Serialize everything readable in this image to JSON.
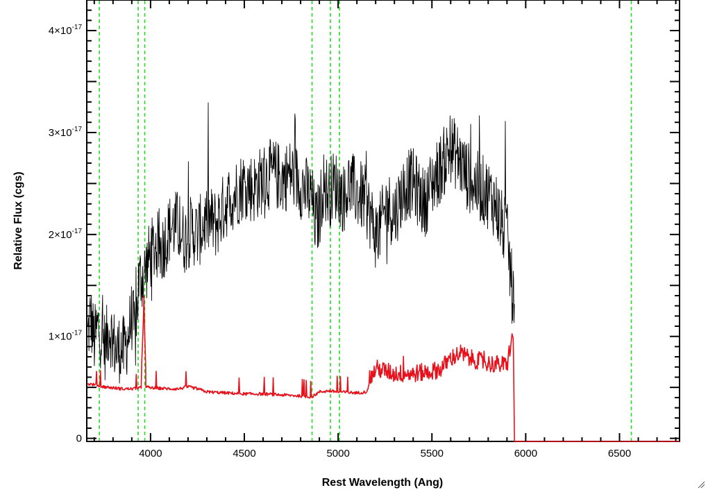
{
  "chart_data": {
    "type": "line",
    "title": "",
    "xlabel": "Rest Wavelength (Ang)",
    "ylabel": "Relative Flux (cgs)",
    "xlim": [
      3660,
      6820
    ],
    "ylim": [
      -0.03,
      4.3
    ],
    "y_unit_exponent": -17,
    "x_ticks": [
      4000,
      4500,
      5000,
      5500,
      6000,
      6500
    ],
    "x_tick_labels": [
      "4000",
      "4500",
      "5000",
      "5500",
      "6000",
      "6500"
    ],
    "y_ticks": [
      0,
      1,
      2,
      3,
      4
    ],
    "y_tick_labels": [
      {
        "mantissa": "0",
        "exponent": ""
      },
      {
        "mantissa": "1×10",
        "exponent": "-17"
      },
      {
        "mantissa": "2×10",
        "exponent": "-17"
      },
      {
        "mantissa": "3×10",
        "exponent": "-17"
      },
      {
        "mantissa": "4×10",
        "exponent": "-17"
      }
    ],
    "grid": false,
    "vertical_lines": [
      3727,
      3934,
      3969,
      4861,
      4959,
      5007,
      6563
    ],
    "series": [
      {
        "color": "#000000",
        "x": [
          3665,
          3680,
          3700,
          3720,
          3740,
          3760,
          3780,
          3800,
          3820,
          3840,
          3860,
          3880,
          3900,
          3920,
          3935,
          3950,
          3965,
          3980,
          4000,
          4030,
          4060,
          4100,
          4140,
          4180,
          4200,
          4220,
          4250,
          4300,
          4350,
          4400,
          4450,
          4500,
          4550,
          4600,
          4650,
          4700,
          4750,
          4800,
          4840,
          4860,
          4880,
          4900,
          4920,
          4950,
          4980,
          5000,
          5030,
          5060,
          5100,
          5140,
          5170,
          5200,
          5230,
          5260,
          5300,
          5340,
          5370,
          5400,
          5430,
          5460,
          5500,
          5530,
          5560,
          5600,
          5640,
          5680,
          5720,
          5760,
          5800,
          5840,
          5870,
          5900,
          5920,
          5935,
          5940
        ],
        "y": [
          1.0,
          1.2,
          0.95,
          1.1,
          1.0,
          0.9,
          1.1,
          0.95,
          0.85,
          0.9,
          0.85,
          1.0,
          1.2,
          1.0,
          1.5,
          1.6,
          1.6,
          1.7,
          1.8,
          1.9,
          1.85,
          2.05,
          2.1,
          1.95,
          2.0,
          2.05,
          2.0,
          2.15,
          2.1,
          2.3,
          2.4,
          2.5,
          2.45,
          2.55,
          2.6,
          2.55,
          2.6,
          2.5,
          2.4,
          2.35,
          2.1,
          2.2,
          2.5,
          2.4,
          2.5,
          2.45,
          2.35,
          2.5,
          2.4,
          2.35,
          2.2,
          2.0,
          2.1,
          2.3,
          2.2,
          2.4,
          2.5,
          2.5,
          2.4,
          2.3,
          2.5,
          2.6,
          2.7,
          2.85,
          2.75,
          2.6,
          2.5,
          2.45,
          2.4,
          2.3,
          2.1,
          2.0,
          1.6,
          1.3,
          1.1
        ],
        "noise_amplitude": 0.35
      },
      {
        "color": "#e8101a",
        "x": [
          3665,
          3700,
          3750,
          3800,
          3850,
          3900,
          3950,
          3965,
          3975,
          4000,
          4100,
          4150,
          4200,
          4250,
          4300,
          4400,
          4500,
          4600,
          4700,
          4800,
          4860,
          4900,
          4950,
          5000,
          5100,
          5150,
          5200,
          5300,
          5400,
          5500,
          5550,
          5600,
          5650,
          5700,
          5800,
          5900,
          5930,
          5935,
          5940,
          6000,
          6200,
          6400,
          6600,
          6820
        ],
        "y": [
          0.53,
          0.52,
          0.5,
          0.49,
          0.48,
          0.48,
          0.49,
          1.4,
          0.5,
          0.49,
          0.48,
          0.48,
          0.5,
          0.48,
          0.45,
          0.44,
          0.43,
          0.43,
          0.42,
          0.41,
          0.4,
          0.45,
          0.46,
          0.45,
          0.44,
          0.45,
          0.65,
          0.6,
          0.6,
          0.62,
          0.65,
          0.75,
          0.8,
          0.75,
          0.7,
          0.68,
          1.0,
          0.8,
          -0.03,
          -0.03,
          -0.03,
          -0.03,
          -0.03,
          -0.03
        ],
        "noise_amplitude": 0.0
      }
    ]
  }
}
